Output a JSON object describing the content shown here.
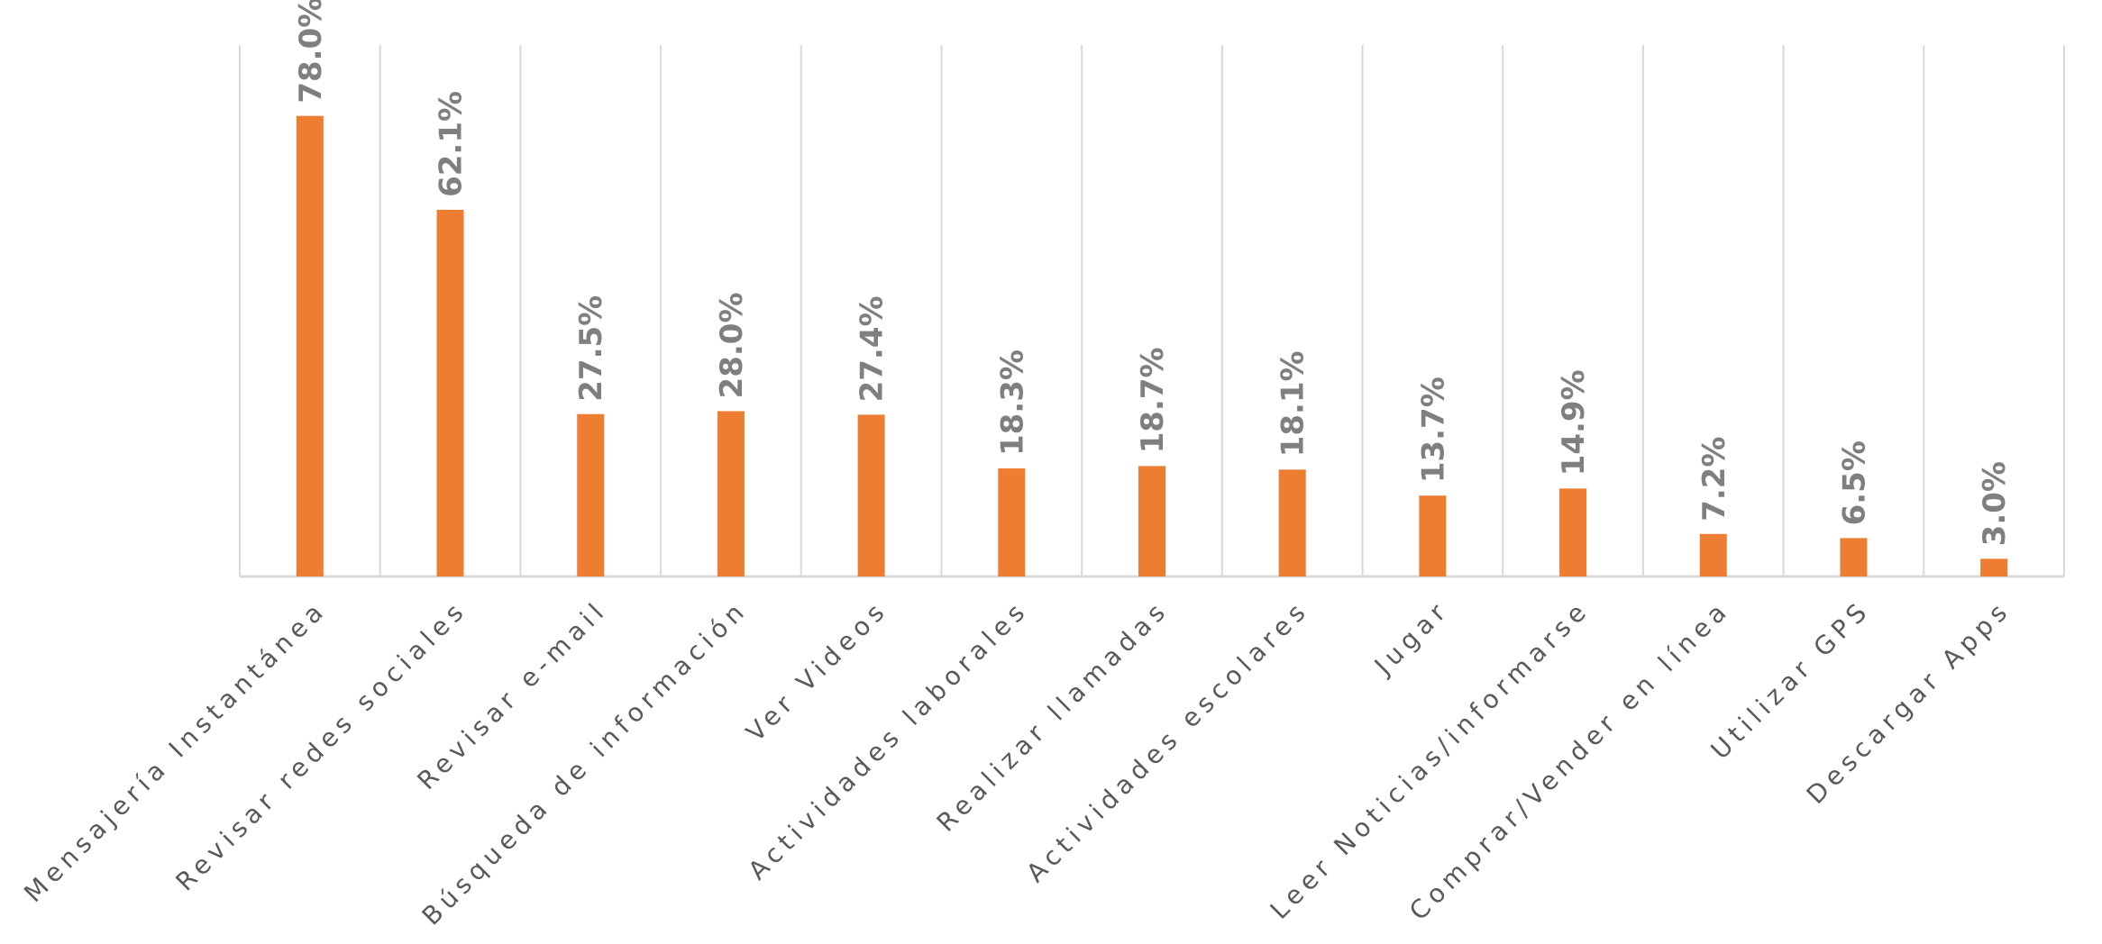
{
  "chart_data": {
    "type": "bar",
    "categories": [
      "Mensajería Instantánea",
      "Revisar redes sociales",
      "Revisar e-mail",
      "Búsqueda de información",
      "Ver Videos",
      "Actividades laborales",
      "Realizar llamadas",
      "Actividades escolares",
      "Jugar",
      "Leer Noticias/informarse",
      "Comprar/Vender en línea",
      "Utilizar GPS",
      "Descargar Apps"
    ],
    "values": [
      78.0,
      62.1,
      27.5,
      28.0,
      27.4,
      18.3,
      18.7,
      18.1,
      13.7,
      14.9,
      7.2,
      6.5,
      3.0
    ],
    "value_labels": [
      "78.0%",
      "62.1%",
      "27.5%",
      "28.0%",
      "27.4%",
      "18.3%",
      "18.7%",
      "18.1%",
      "13.7%",
      "14.9%",
      "7.2%",
      "6.5%",
      "3.0%"
    ],
    "ylim": [
      0,
      90
    ],
    "grid": "vertical",
    "colors": {
      "bar": "#ed7d31",
      "grid": "#d9d9d9",
      "value_label": "#7f7f7f",
      "category_label": "#595959"
    }
  }
}
